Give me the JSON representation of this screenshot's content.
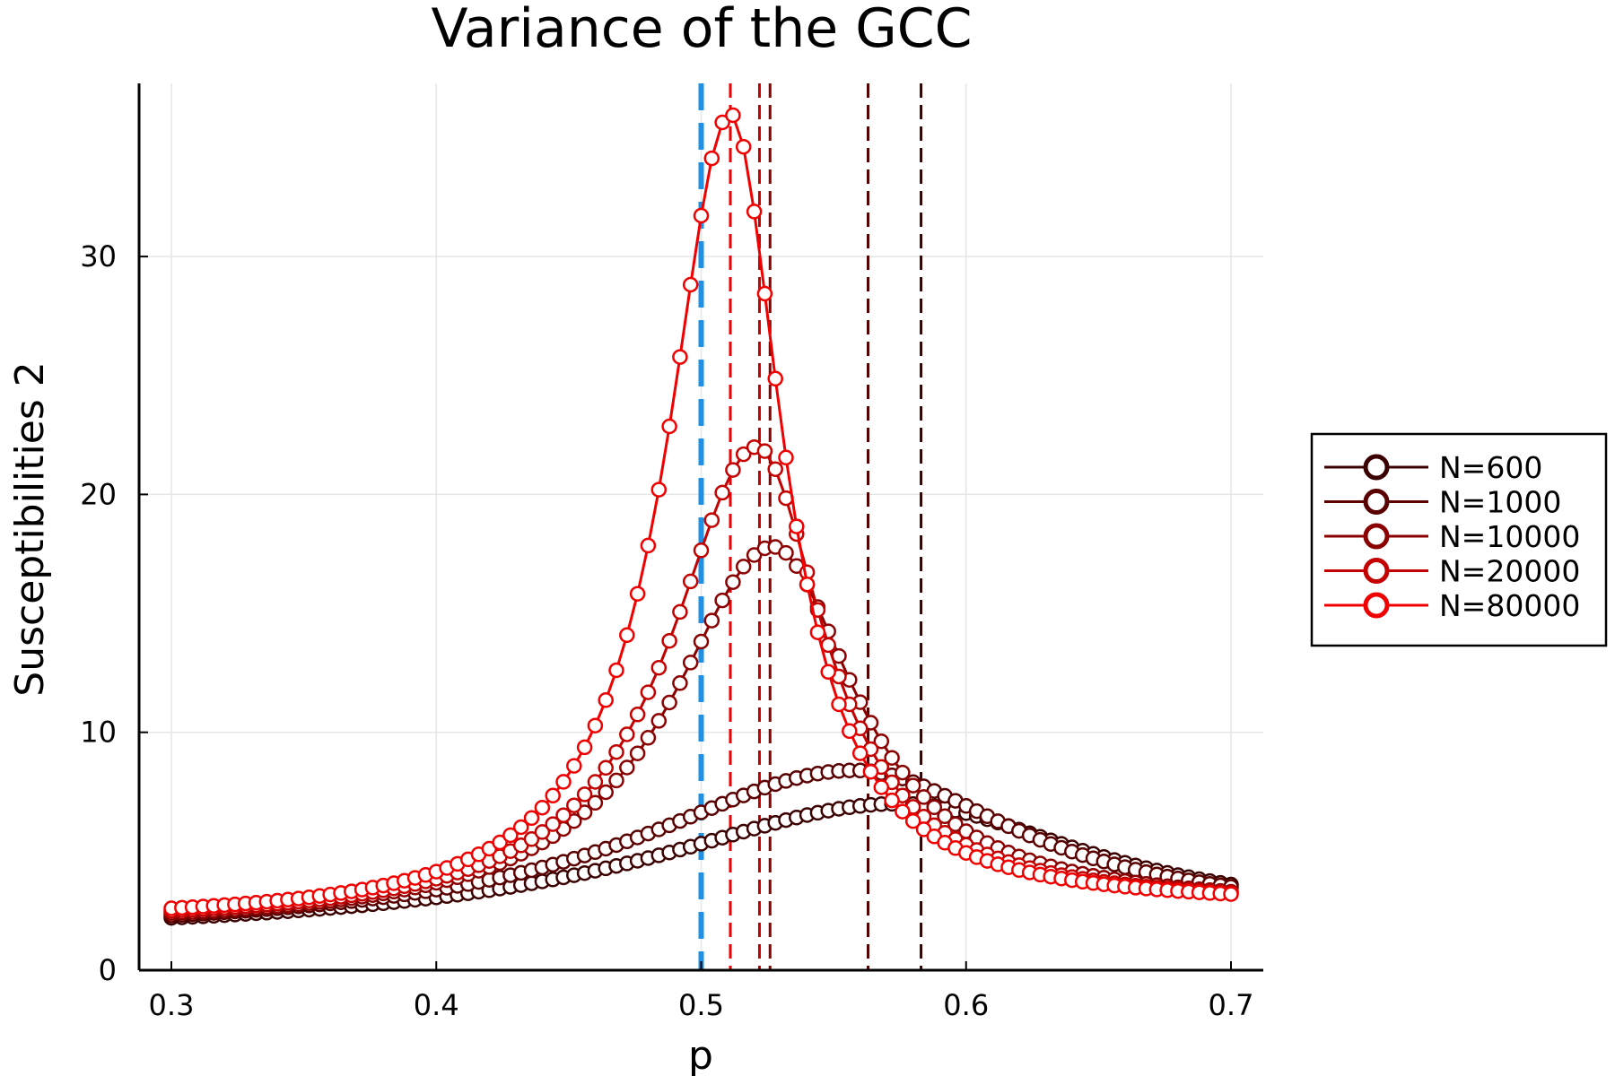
{
  "chart_data": {
    "type": "line",
    "title": "Variance of the GCC",
    "xlabel": "p",
    "ylabel": "Susceptibilities 2",
    "xlim": [
      0.3,
      0.7
    ],
    "ylim": [
      0,
      36
    ],
    "x_ticks": [
      {
        "value": 0.3,
        "label": "0.3"
      },
      {
        "value": 0.4,
        "label": "0.4"
      },
      {
        "value": 0.5,
        "label": "0.5"
      },
      {
        "value": 0.6,
        "label": "0.6"
      },
      {
        "value": 0.7,
        "label": "0.7"
      }
    ],
    "y_ticks": [
      {
        "value": 0,
        "label": "0"
      },
      {
        "value": 10,
        "label": "10"
      },
      {
        "value": 20,
        "label": "20"
      },
      {
        "value": 30,
        "label": "30"
      }
    ],
    "grid": true,
    "legend_position": "right",
    "x_step": 0.004,
    "series": [
      {
        "name": "N=600",
        "color": "#3b0000",
        "peak_x": 0.575,
        "peak_y": 7.0,
        "left_y": 2.2,
        "right_y": 3.6,
        "left_width": 0.115,
        "right_width": 0.085,
        "critical_p": 0.583
      },
      {
        "name": "N=1000",
        "color": "#5a0000",
        "peak_x": 0.558,
        "peak_y": 8.4,
        "left_y": 2.3,
        "right_y": 3.5,
        "left_width": 0.1,
        "right_width": 0.075,
        "critical_p": 0.563
      },
      {
        "name": "N=10000",
        "color": "#8b0000",
        "peak_x": 0.527,
        "peak_y": 17.8,
        "left_y": 2.4,
        "right_y": 3.3,
        "left_width": 0.047,
        "right_width": 0.038,
        "critical_p": 0.526
      },
      {
        "name": "N=20000",
        "color": "#c40000",
        "peak_x": 0.521,
        "peak_y": 22.0,
        "left_y": 2.5,
        "right_y": 3.25,
        "left_width": 0.04,
        "right_width": 0.031,
        "critical_p": 0.522
      },
      {
        "name": "N=80000",
        "color": "#f00000",
        "peak_x": 0.511,
        "peak_y": 36.0,
        "left_y": 2.6,
        "right_y": 3.2,
        "left_width": 0.029,
        "right_width": 0.024,
        "critical_p": 0.511
      }
    ],
    "reference_line": {
      "x": 0.5,
      "color": "#1e90e6",
      "style": "dashed"
    }
  }
}
